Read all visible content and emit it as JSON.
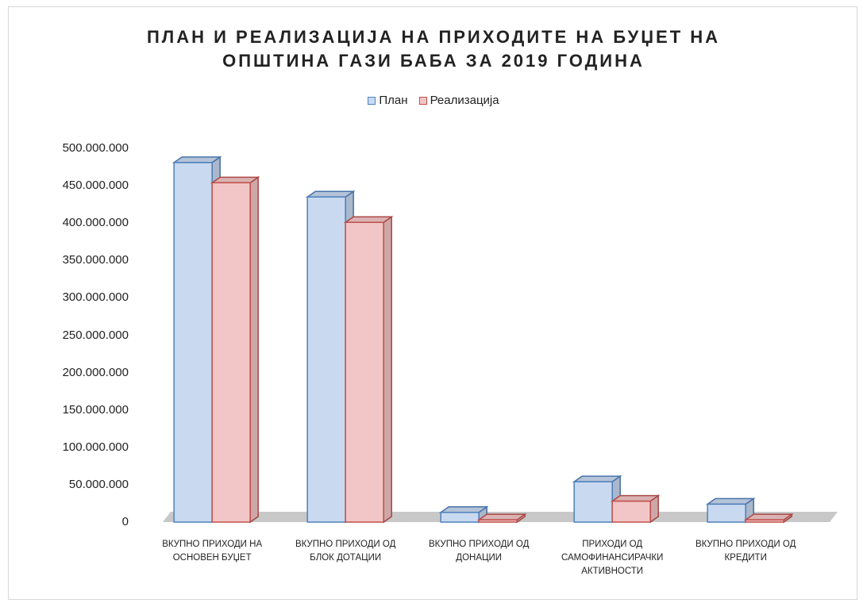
{
  "chart_data": {
    "type": "bar3d",
    "title": "ПЛАН И РЕАЛИЗАЦИЈА НА ПРИХОДИТЕ НА БУЏЕТ НА ОПШТИНА ГАЗИ БАБА ЗА 2019 ГОДИНА",
    "categories": [
      "ВКУПНО ПРИХОДИ НА ОСНОВЕН БУЏЕТ",
      "ВКУПНО ПРИХОДИ ОД БЛОК ДОТАЦИИ",
      "ВКУПНО ПРИХОДИ ОД ДОНАЦИИ",
      "ПРИХОДИ ОД САМОФИНАНСИРАЧКИ АКТИВНОСТИ",
      "ВКУПНО ПРИХОДИ ОД КРЕДИТИ"
    ],
    "series": [
      {
        "name": "План",
        "color": "#c9d9f0",
        "edge": "#4f81bd",
        "values": [
          481000000,
          435000000,
          13000000,
          54000000,
          24000000
        ]
      },
      {
        "name": "Реализација",
        "color": "#f2c6c6",
        "edge": "#c0504d",
        "values": [
          454000000,
          401000000,
          3000000,
          28000000,
          3000000
        ]
      }
    ],
    "ylim": [
      0,
      500000000
    ],
    "yticks": [
      0,
      {
        "value": 50000000,
        "label": "50.000.000"
      },
      {
        "value": 100000000,
        "label": "100.000.000"
      },
      {
        "value": 150000000,
        "label": "150.000.000"
      },
      {
        "value": 200000000,
        "label": "200.000.000"
      },
      {
        "value": 250000000,
        "label": "250.000.000"
      },
      {
        "value": 300000000,
        "label": "300.000.000"
      },
      {
        "value": 350000000,
        "label": "350.000.000"
      },
      {
        "value": 400000000,
        "label": "400.000.000"
      },
      {
        "value": 450000000,
        "label": "450.000.000"
      },
      {
        "value": 500000000,
        "label": "500.000.000"
      }
    ],
    "legend": "top",
    "grid": false
  }
}
